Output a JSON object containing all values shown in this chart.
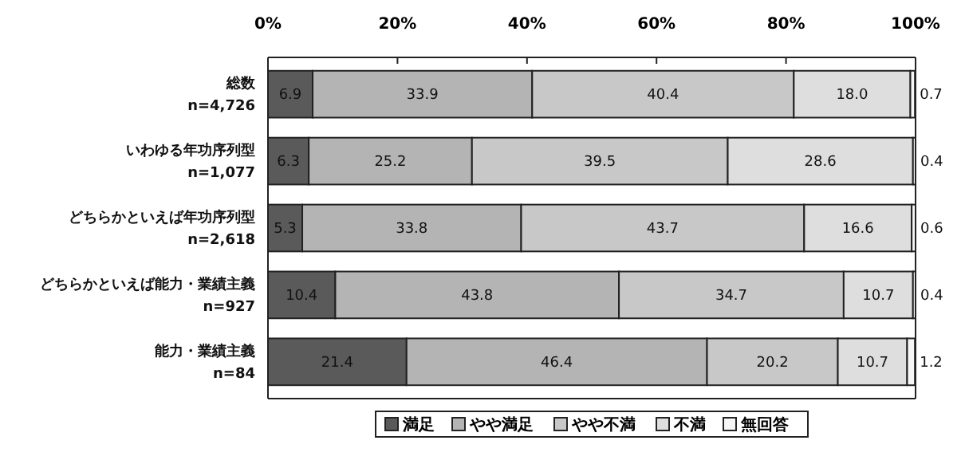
{
  "chart_data": {
    "type": "bar",
    "orientation": "horizontal",
    "stacked": true,
    "legend": "bottom",
    "grid": false,
    "categories": [
      "総数\nn=4,726",
      "いわゆる年功序列型\nn=1,077",
      "どちらかといえば年功序列型\nn=2,618",
      "どちらかといえば能力・業績主義\nn=927",
      "能力・業績主義\nn=84"
    ],
    "xlim": [
      0,
      100
    ],
    "xticks": [
      {
        "value": 0,
        "label": "0%"
      },
      {
        "value": 20,
        "label": "20%"
      },
      {
        "value": 40,
        "label": "40%"
      },
      {
        "value": 60,
        "label": "60%"
      },
      {
        "value": 80,
        "label": "80%"
      },
      {
        "value": 100,
        "label": "100%"
      }
    ],
    "series": [
      {
        "name": "満足",
        "color": "#5a5a5a",
        "values": [
          6.9,
          6.3,
          5.3,
          10.4,
          21.4
        ],
        "value_labels": [
          "6.9",
          "6.3",
          "5.3",
          "10.4",
          "21.4"
        ]
      },
      {
        "name": "やや満足",
        "color": "#b4b4b4",
        "values": [
          33.9,
          25.2,
          33.8,
          43.8,
          46.4
        ],
        "value_labels": [
          "33.9",
          "25.2",
          "33.8",
          "43.8",
          "46.4"
        ]
      },
      {
        "name": "やや不満",
        "color": "#c8c8c8",
        "values": [
          40.4,
          39.5,
          43.7,
          34.7,
          20.2
        ],
        "value_labels": [
          "40.4",
          "39.5",
          "43.7",
          "34.7",
          "20.2"
        ]
      },
      {
        "name": "不満",
        "color": "#dedede",
        "values": [
          18.0,
          28.6,
          16.6,
          10.7,
          10.7
        ],
        "value_labels": [
          "18.0",
          "28.6",
          "16.6",
          "10.7",
          "10.7"
        ]
      },
      {
        "name": "無回答",
        "color": "#f6f6f6",
        "values": [
          0.7,
          0.4,
          0.6,
          0.4,
          1.2
        ],
        "value_labels": [
          "0.7",
          "0.4",
          "0.6",
          "0.4",
          "1.2"
        ]
      }
    ]
  }
}
